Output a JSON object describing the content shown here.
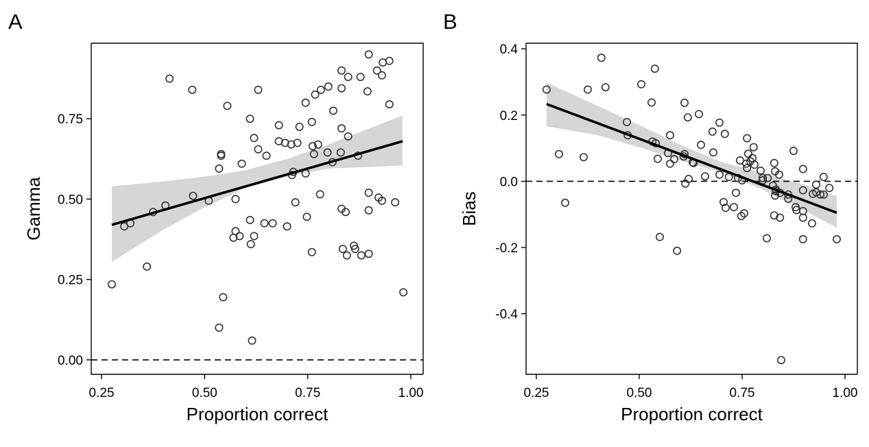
{
  "chart_data": [
    {
      "type": "scatter",
      "panel": "A",
      "xlabel": "Proportion correct",
      "ylabel": "Gamma",
      "xlim": [
        0.225,
        1.03
      ],
      "ylim": [
        -0.045,
        0.985
      ],
      "xticks": [
        "0.25",
        "0.50",
        "0.75",
        "1.00"
      ],
      "yticks": [
        "0.00",
        "0.25",
        "0.50",
        "0.75"
      ],
      "reference_line": {
        "y": 0.0,
        "style": "dashed"
      },
      "trend_line": {
        "x": [
          0.275,
          0.98
        ],
        "y": [
          0.42,
          0.68
        ]
      },
      "confidence_band": {
        "x": [
          0.275,
          0.4,
          0.5,
          0.6,
          0.7,
          0.8,
          0.9,
          0.98
        ],
        "lower": [
          0.305,
          0.405,
          0.475,
          0.535,
          0.57,
          0.595,
          0.6,
          0.605
        ],
        "upper": [
          0.54,
          0.555,
          0.57,
          0.59,
          0.625,
          0.67,
          0.72,
          0.76
        ]
      },
      "points": [
        [
          0.275,
          0.235
        ],
        [
          0.305,
          0.415
        ],
        [
          0.32,
          0.425
        ],
        [
          0.36,
          0.29
        ],
        [
          0.375,
          0.46
        ],
        [
          0.405,
          0.48
        ],
        [
          0.415,
          0.875
        ],
        [
          0.47,
          0.84
        ],
        [
          0.472,
          0.51
        ],
        [
          0.51,
          0.495
        ],
        [
          0.535,
          0.595
        ],
        [
          0.535,
          0.1
        ],
        [
          0.54,
          0.635
        ],
        [
          0.54,
          0.64
        ],
        [
          0.545,
          0.195
        ],
        [
          0.555,
          0.79
        ],
        [
          0.57,
          0.38
        ],
        [
          0.575,
          0.4
        ],
        [
          0.575,
          0.5
        ],
        [
          0.585,
          0.385
        ],
        [
          0.59,
          0.61
        ],
        [
          0.61,
          0.75
        ],
        [
          0.61,
          0.435
        ],
        [
          0.612,
          0.36
        ],
        [
          0.615,
          0.06
        ],
        [
          0.62,
          0.385
        ],
        [
          0.62,
          0.69
        ],
        [
          0.63,
          0.84
        ],
        [
          0.63,
          0.655
        ],
        [
          0.645,
          0.425
        ],
        [
          0.65,
          0.635
        ],
        [
          0.665,
          0.425
        ],
        [
          0.68,
          0.68
        ],
        [
          0.68,
          0.73
        ],
        [
          0.695,
          0.675
        ],
        [
          0.7,
          0.415
        ],
        [
          0.71,
          0.67
        ],
        [
          0.712,
          0.575
        ],
        [
          0.715,
          0.585
        ],
        [
          0.72,
          0.49
        ],
        [
          0.725,
          0.675
        ],
        [
          0.73,
          0.725
        ],
        [
          0.745,
          0.58
        ],
        [
          0.745,
          0.8
        ],
        [
          0.748,
          0.445
        ],
        [
          0.76,
          0.335
        ],
        [
          0.76,
          0.74
        ],
        [
          0.762,
          0.665
        ],
        [
          0.765,
          0.64
        ],
        [
          0.768,
          0.825
        ],
        [
          0.775,
          0.67
        ],
        [
          0.78,
          0.515
        ],
        [
          0.782,
          0.84
        ],
        [
          0.798,
          0.645
        ],
        [
          0.8,
          0.85
        ],
        [
          0.81,
          0.615
        ],
        [
          0.812,
          0.775
        ],
        [
          0.83,
          0.645
        ],
        [
          0.832,
          0.72
        ],
        [
          0.832,
          0.845
        ],
        [
          0.832,
          0.9
        ],
        [
          0.832,
          0.47
        ],
        [
          0.835,
          0.345
        ],
        [
          0.842,
          0.46
        ],
        [
          0.845,
          0.325
        ],
        [
          0.848,
          0.695
        ],
        [
          0.848,
          0.88
        ],
        [
          0.862,
          0.355
        ],
        [
          0.865,
          0.345
        ],
        [
          0.872,
          0.635
        ],
        [
          0.878,
          0.88
        ],
        [
          0.88,
          0.325
        ],
        [
          0.895,
          0.835
        ],
        [
          0.898,
          0.95
        ],
        [
          0.898,
          0.52
        ],
        [
          0.898,
          0.465
        ],
        [
          0.898,
          0.33
        ],
        [
          0.918,
          0.9
        ],
        [
          0.922,
          0.505
        ],
        [
          0.93,
          0.495
        ],
        [
          0.93,
          0.885
        ],
        [
          0.932,
          0.925
        ],
        [
          0.948,
          0.93
        ],
        [
          0.948,
          0.795
        ],
        [
          0.962,
          0.49
        ],
        [
          0.982,
          0.21
        ]
      ]
    },
    {
      "type": "scatter",
      "panel": "B",
      "xlabel": "Proportion correct",
      "ylabel": "Bias",
      "xlim": [
        0.225,
        1.03
      ],
      "ylim": [
        -0.583,
        0.417
      ],
      "xticks": [
        "0.25",
        "0.50",
        "0.75",
        "1.00"
      ],
      "yticks": [
        "-0.4",
        "-0.2",
        "0.0",
        "0.2",
        "0.4"
      ],
      "reference_line": {
        "y": 0.0,
        "style": "dashed"
      },
      "trend_line": {
        "x": [
          0.275,
          0.98
        ],
        "y": [
          0.233,
          -0.095
        ]
      },
      "confidence_band": {
        "x": [
          0.275,
          0.4,
          0.5,
          0.6,
          0.7,
          0.8,
          0.9,
          0.98
        ],
        "lower": [
          0.166,
          0.139,
          0.103,
          0.063,
          0.026,
          -0.025,
          -0.088,
          -0.14
        ],
        "upper": [
          0.298,
          0.227,
          0.17,
          0.11,
          0.058,
          0.025,
          -0.01,
          -0.045
        ]
      },
      "points": [
        [
          0.275,
          0.277
        ],
        [
          0.305,
          0.082
        ],
        [
          0.32,
          -0.065
        ],
        [
          0.365,
          0.073
        ],
        [
          0.375,
          0.277
        ],
        [
          0.408,
          0.373
        ],
        [
          0.418,
          0.284
        ],
        [
          0.47,
          0.179
        ],
        [
          0.472,
          0.139
        ],
        [
          0.505,
          0.293
        ],
        [
          0.53,
          0.238
        ],
        [
          0.532,
          0.12
        ],
        [
          0.538,
          0.34
        ],
        [
          0.54,
          0.115
        ],
        [
          0.545,
          0.068
        ],
        [
          0.55,
          -0.168
        ],
        [
          0.57,
          0.085
        ],
        [
          0.575,
          0.139
        ],
        [
          0.575,
          0.053
        ],
        [
          0.585,
          0.067
        ],
        [
          0.592,
          -0.21
        ],
        [
          0.608,
          0.075
        ],
        [
          0.61,
          0.237
        ],
        [
          0.61,
          0.082
        ],
        [
          0.612,
          -0.007
        ],
        [
          0.618,
          0.193
        ],
        [
          0.62,
          0.007
        ],
        [
          0.63,
          0.057
        ],
        [
          0.632,
          0.055
        ],
        [
          0.645,
          0.203
        ],
        [
          0.65,
          0.11
        ],
        [
          0.66,
          0.015
        ],
        [
          0.678,
          0.15
        ],
        [
          0.68,
          0.087
        ],
        [
          0.695,
          0.177
        ],
        [
          0.695,
          0.02
        ],
        [
          0.705,
          -0.063
        ],
        [
          0.708,
          0.143
        ],
        [
          0.71,
          -0.08
        ],
        [
          0.718,
          0.013
        ],
        [
          0.73,
          -0.078
        ],
        [
          0.735,
          -0.035
        ],
        [
          0.74,
          0.01
        ],
        [
          0.745,
          0.063
        ],
        [
          0.748,
          -0.105
        ],
        [
          0.75,
          0.003
        ],
        [
          0.755,
          -0.097
        ],
        [
          0.76,
          0.053
        ],
        [
          0.762,
          0.13
        ],
        [
          0.762,
          0.04
        ],
        [
          0.765,
          0.083
        ],
        [
          0.77,
          0.06
        ],
        [
          0.775,
          0.07
        ],
        [
          0.778,
          0.103
        ],
        [
          0.78,
          0.05
        ],
        [
          0.795,
          0.032
        ],
        [
          0.8,
          0.01
        ],
        [
          0.8,
          0.003
        ],
        [
          0.81,
          -0.172
        ],
        [
          0.812,
          0.01
        ],
        [
          0.825,
          -0.013
        ],
        [
          0.828,
          0.055
        ],
        [
          0.828,
          -0.103
        ],
        [
          0.83,
          -0.043
        ],
        [
          0.83,
          0.03
        ],
        [
          0.832,
          -0.025
        ],
        [
          0.832,
          -0.03
        ],
        [
          0.84,
          0.02
        ],
        [
          0.842,
          -0.035
        ],
        [
          0.842,
          -0.11
        ],
        [
          0.845,
          -0.54
        ],
        [
          0.862,
          -0.04
        ],
        [
          0.862,
          -0.053
        ],
        [
          0.875,
          0.092
        ],
        [
          0.88,
          -0.078
        ],
        [
          0.882,
          -0.087
        ],
        [
          0.898,
          0.037
        ],
        [
          0.898,
          -0.027
        ],
        [
          0.898,
          -0.09
        ],
        [
          0.898,
          -0.11
        ],
        [
          0.898,
          -0.175
        ],
        [
          0.92,
          -0.127
        ],
        [
          0.922,
          -0.038
        ],
        [
          0.93,
          -0.033
        ],
        [
          0.93,
          -0.01
        ],
        [
          0.94,
          -0.04
        ],
        [
          0.948,
          0.013
        ],
        [
          0.948,
          -0.04
        ],
        [
          0.962,
          -0.02
        ],
        [
          0.98,
          -0.175
        ]
      ]
    }
  ]
}
